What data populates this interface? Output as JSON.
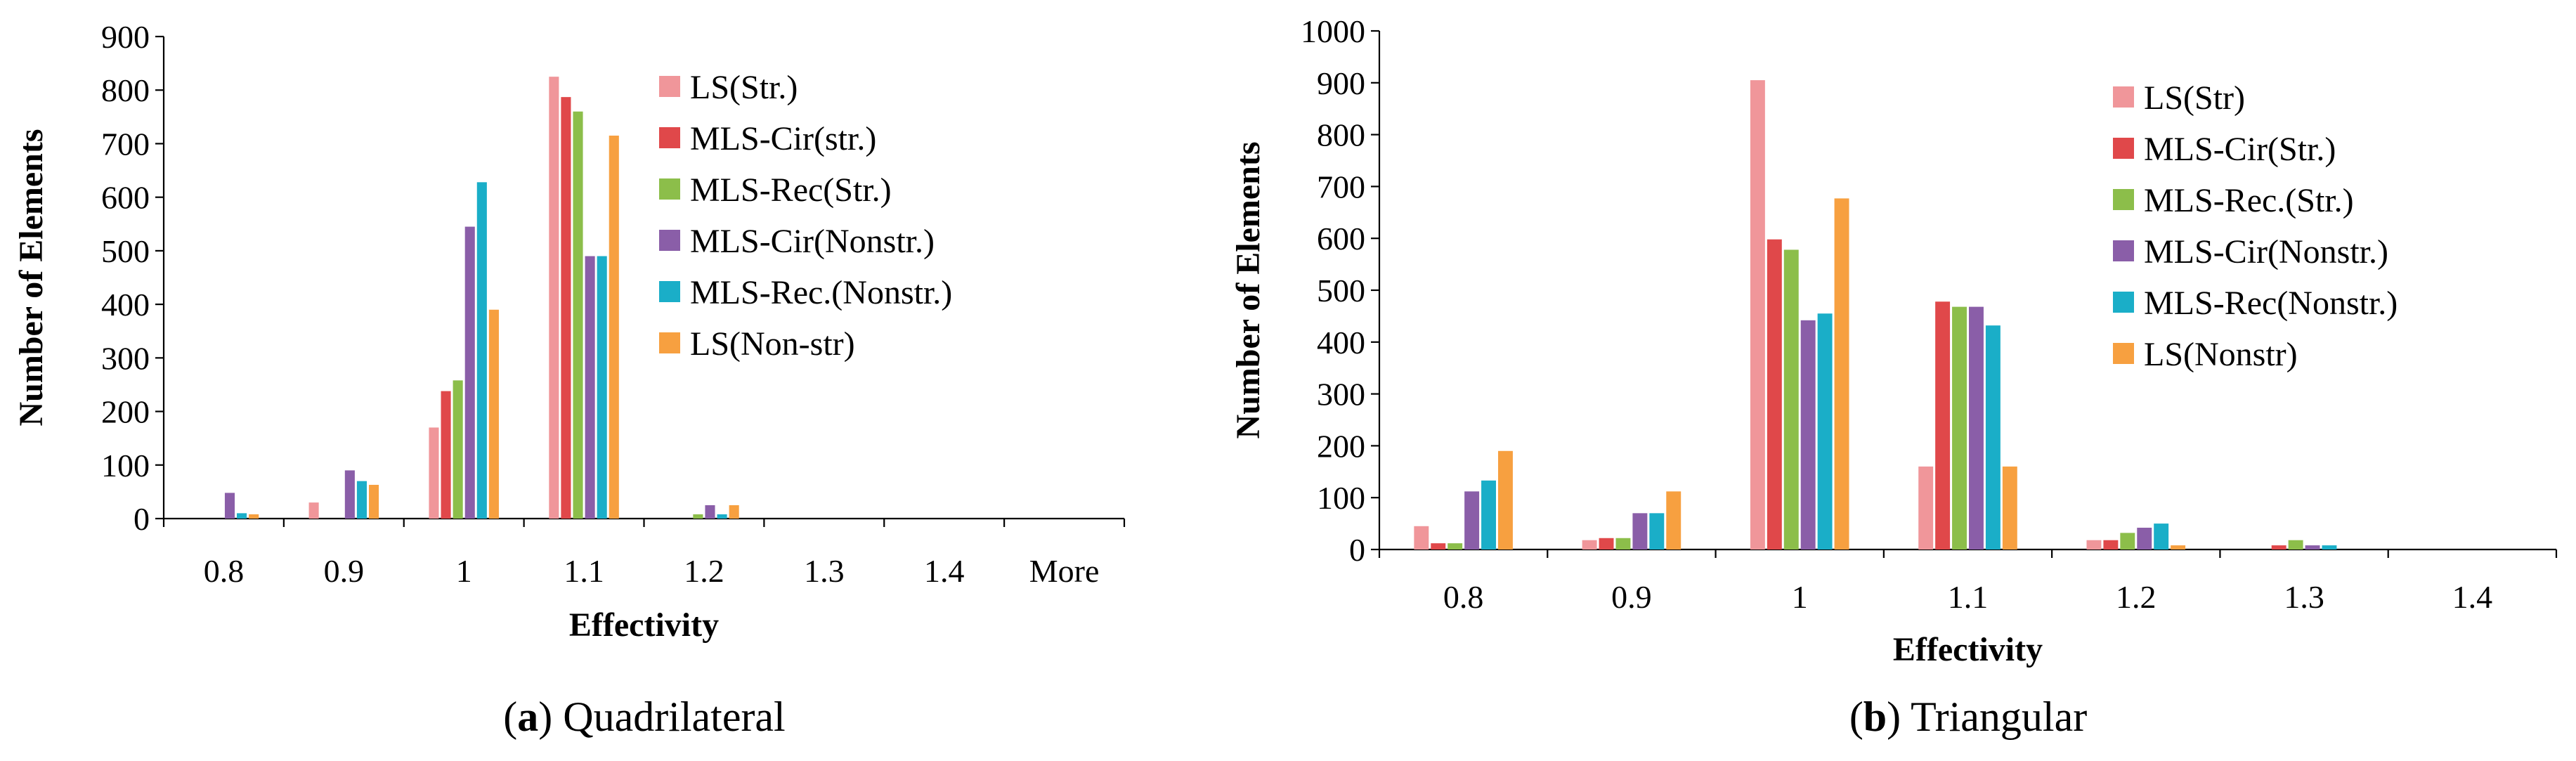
{
  "chart_data": [
    {
      "type": "bar",
      "caption": {
        "letter": "a",
        "text": "Quadrilateral"
      },
      "xlabel": "Effectivity",
      "ylabel": "Number of Elements",
      "categories": [
        "0.8",
        "0.9",
        "1",
        "1.1",
        "1.2",
        "1.3",
        "1.4",
        "More"
      ],
      "ylim": [
        0,
        900
      ],
      "yticks": [
        0,
        100,
        200,
        300,
        400,
        500,
        600,
        700,
        800,
        900
      ],
      "legend_position": "top-right",
      "grid": false,
      "series": [
        {
          "name": "LS(Str.)",
          "color": "#f0969a",
          "values": [
            0,
            30,
            170,
            825,
            0,
            0,
            0,
            0
          ]
        },
        {
          "name": "MLS-Cir(str.)",
          "color": "#e0484a",
          "values": [
            0,
            0,
            238,
            787,
            0,
            0,
            0,
            0
          ]
        },
        {
          "name": "MLS-Rec(Str.)",
          "color": "#8cbe4a",
          "values": [
            0,
            0,
            258,
            760,
            8,
            0,
            0,
            0
          ]
        },
        {
          "name": "MLS-Cir(Nonstr.)",
          "color": "#8a5ea8",
          "values": [
            48,
            90,
            545,
            490,
            25,
            0,
            0,
            0
          ]
        },
        {
          "name": "MLS-Rec.(Nonstr.)",
          "color": "#1aaec8",
          "values": [
            10,
            70,
            628,
            490,
            8,
            0,
            0,
            0
          ]
        },
        {
          "name": "LS(Non-str)",
          "color": "#f7a040",
          "values": [
            8,
            63,
            390,
            715,
            25,
            0,
            0,
            0
          ]
        }
      ]
    },
    {
      "type": "bar",
      "caption": {
        "letter": "b",
        "text": "Triangular"
      },
      "xlabel": "Effectivity",
      "ylabel": "Number of Elements",
      "categories": [
        "0.8",
        "0.9",
        "1",
        "1.1",
        "1.2",
        "1.3",
        "1.4"
      ],
      "ylim": [
        0,
        1000
      ],
      "yticks": [
        0,
        100,
        200,
        300,
        400,
        500,
        600,
        700,
        800,
        900,
        1000
      ],
      "legend_position": "top-right",
      "grid": false,
      "series": [
        {
          "name": "LS(Str)",
          "color": "#f0969a",
          "values": [
            45,
            18,
            905,
            160,
            18,
            0,
            0
          ]
        },
        {
          "name": "MLS-Cir(Str.)",
          "color": "#e0484a",
          "values": [
            12,
            22,
            598,
            478,
            18,
            8,
            0
          ]
        },
        {
          "name": "MLS-Rec.(Str.)",
          "color": "#8cbe4a",
          "values": [
            12,
            22,
            578,
            468,
            32,
            18,
            0
          ]
        },
        {
          "name": "MLS-Cir(Nonstr.)",
          "color": "#8a5ea8",
          "values": [
            112,
            70,
            442,
            468,
            42,
            8,
            0
          ]
        },
        {
          "name": "MLS-Rec(Nonstr.)",
          "color": "#1aaec8",
          "values": [
            133,
            70,
            455,
            432,
            50,
            8,
            0
          ]
        },
        {
          "name": "LS(Nonstr)",
          "color": "#f7a040",
          "values": [
            190,
            112,
            677,
            160,
            8,
            0,
            0
          ]
        }
      ]
    }
  ]
}
